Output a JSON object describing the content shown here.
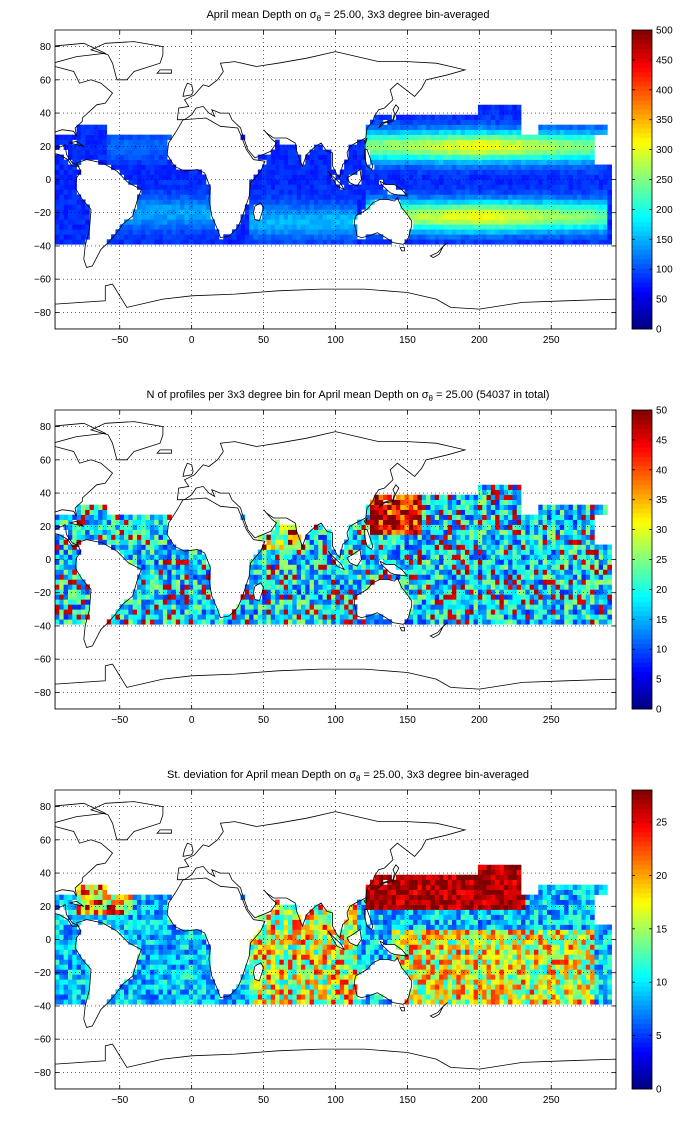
{
  "chart_data": [
    {
      "type": "heatmap",
      "title_parts": [
        "April mean Depth on ",
        "σ",
        "θ",
        " = 25.00, 3x3 degree bin-averaged"
      ],
      "xticks": [
        -50,
        0,
        50,
        100,
        150,
        200,
        250
      ],
      "yticks": [
        80,
        60,
        40,
        20,
        0,
        -20,
        -40,
        -60,
        -80
      ],
      "xlim": [
        -95,
        295
      ],
      "ylim": [
        -90,
        90
      ],
      "grid": true,
      "colorbar": {
        "ticks": [
          0,
          50,
          100,
          150,
          200,
          250,
          300,
          350,
          400,
          450,
          500
        ],
        "range": [
          0,
          500
        ]
      },
      "field": "depth"
    },
    {
      "type": "heatmap",
      "title_parts": [
        "N of profiles per 3x3 degree bin for April mean Depth on ",
        "σ",
        "θ",
        " = 25.00 (54037 in total)"
      ],
      "xticks": [
        -50,
        0,
        50,
        100,
        150,
        200,
        250
      ],
      "yticks": [
        80,
        60,
        40,
        20,
        0,
        -20,
        -40,
        -60,
        -80
      ],
      "xlim": [
        -95,
        295
      ],
      "ylim": [
        -90,
        90
      ],
      "grid": true,
      "colorbar": {
        "ticks": [
          0,
          5,
          10,
          15,
          20,
          25,
          30,
          35,
          40,
          45,
          50
        ],
        "range": [
          0,
          50
        ]
      },
      "field": "count"
    },
    {
      "type": "heatmap",
      "title_parts": [
        "St. deviation for April mean Depth on ",
        "σ",
        "θ",
        " = 25.00, 3x3 degree bin-averaged"
      ],
      "xticks": [
        -50,
        0,
        50,
        100,
        150,
        200,
        250
      ],
      "yticks": [
        80,
        60,
        40,
        20,
        0,
        -20,
        -40,
        -60,
        -80
      ],
      "xlim": [
        -95,
        295
      ],
      "ylim": [
        -90,
        90
      ],
      "grid": true,
      "colorbar": {
        "ticks": [
          0,
          5,
          10,
          15,
          20,
          25
        ],
        "range": [
          0,
          28
        ]
      },
      "field": "std"
    }
  ],
  "colormap": "jet"
}
